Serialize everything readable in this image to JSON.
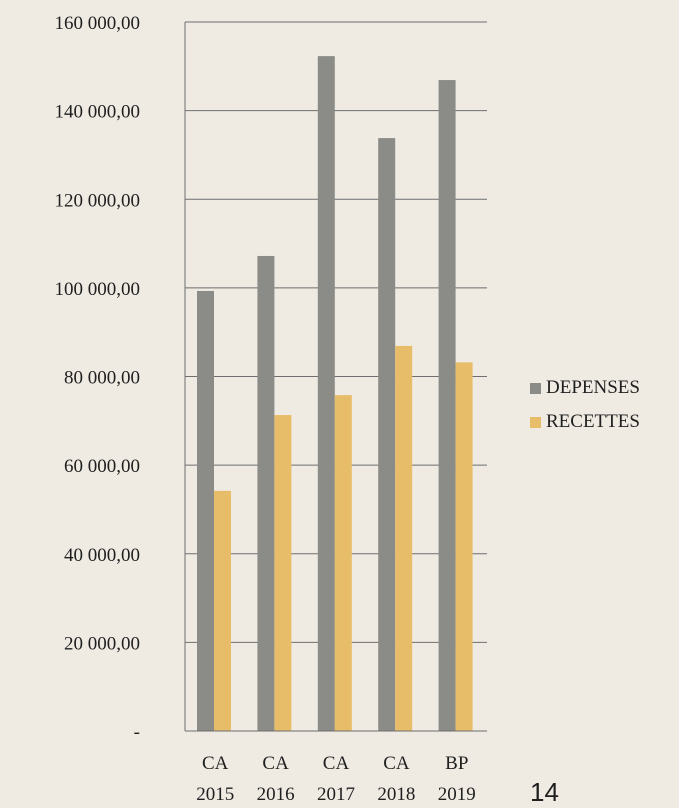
{
  "chart_data": {
    "type": "bar",
    "categories": [
      [
        "CA",
        "2015"
      ],
      [
        "CA",
        "2016"
      ],
      [
        "CA",
        "2017"
      ],
      [
        "CA",
        "2018"
      ],
      [
        "BP",
        "2019"
      ]
    ],
    "series": [
      {
        "name": "DEPENSES",
        "values": [
          99300,
          107200,
          152300,
          133800,
          146900
        ],
        "color": "#8b8c87"
      },
      {
        "name": "RECETTES",
        "values": [
          54200,
          71300,
          75800,
          86900,
          83200
        ],
        "color": "#e8bd69"
      }
    ],
    "yticks": [
      {
        "value": 0,
        "label": "-"
      },
      {
        "value": 20000,
        "label": "20 000,00"
      },
      {
        "value": 40000,
        "label": "40 000,00"
      },
      {
        "value": 60000,
        "label": "60 000,00"
      },
      {
        "value": 80000,
        "label": "80 000,00"
      },
      {
        "value": 100000,
        "label": "100 000,00"
      },
      {
        "value": 120000,
        "label": "120 000,00"
      },
      {
        "value": 140000,
        "label": "140 000,00"
      },
      {
        "value": 160000,
        "label": "160 000,00"
      }
    ],
    "ylim": [
      0,
      160000
    ],
    "grid": true,
    "legend_position": "right",
    "title": "",
    "xlabel": "",
    "ylabel": ""
  },
  "page_number": "14"
}
